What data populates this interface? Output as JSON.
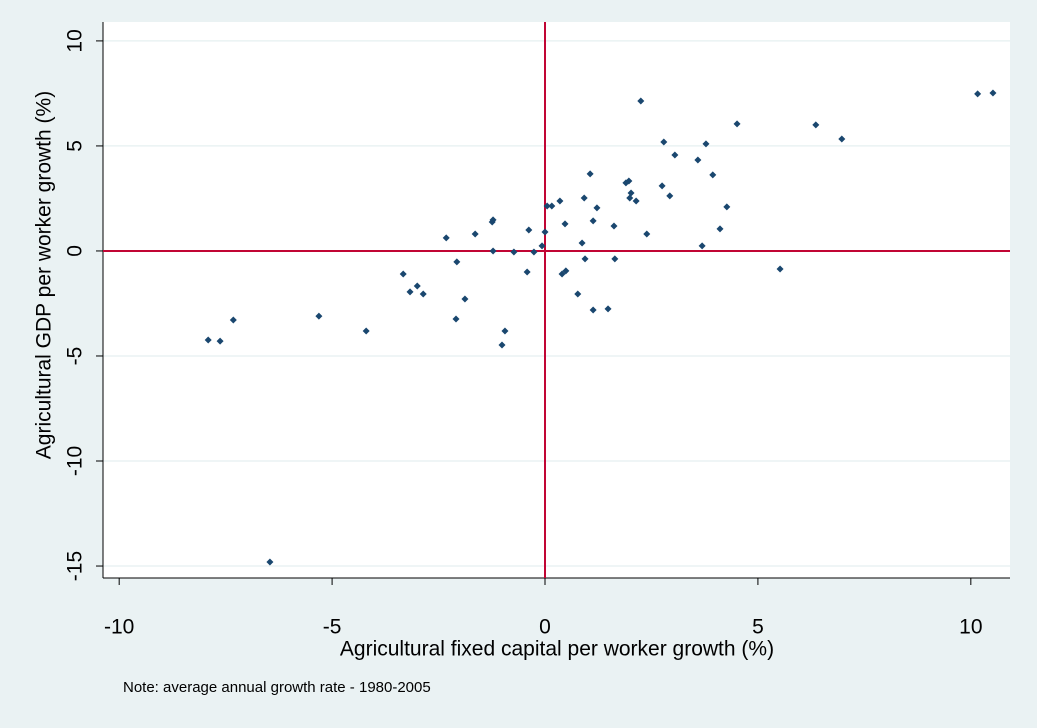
{
  "chart_data": {
    "type": "scatter",
    "xlabel": "Agricultural fixed capital per worker growth (%)",
    "ylabel": "Agricultural GDP per worker growth (%)",
    "note": "Note: average annual growth rate - 1980-2005",
    "color": "#1a476f",
    "refline_color": "#c10534",
    "xline": 0,
    "yline": 0,
    "grid": true,
    "xlim": [
      -10.38,
      10.92
    ],
    "ylim": [
      -15.57,
      10.9
    ],
    "xticks": [
      -10,
      -5,
      0,
      5,
      10
    ],
    "yticks": [
      10,
      5,
      0,
      -5,
      -10,
      -15
    ],
    "x": [
      -7.91,
      -7.63,
      -7.32,
      -6.46,
      -5.31,
      -4.2,
      -3.33,
      -3.17,
      -3.0,
      -2.86,
      -2.32,
      -2.07,
      -2.09,
      -1.88,
      -1.64,
      -1.24,
      -1.22,
      -1.22,
      -1.01,
      -0.94,
      -0.73,
      -0.42,
      -0.38,
      -0.26,
      -0.07,
      0.0,
      0.05,
      0.16,
      0.35,
      0.4,
      0.49,
      0.47,
      0.77,
      0.87,
      0.92,
      0.94,
      1.06,
      1.13,
      1.13,
      1.22,
      1.48,
      1.62,
      1.64,
      1.9,
      1.97,
      1.99,
      2.02,
      2.14,
      2.25,
      2.39,
      2.75,
      2.79,
      2.93,
      3.05,
      3.59,
      3.69,
      3.78,
      3.94,
      4.11,
      4.27,
      4.51,
      5.52,
      6.36,
      6.97,
      10.16,
      10.52
    ],
    "values": [
      -4.24,
      -4.29,
      -3.29,
      -14.81,
      -3.1,
      -3.81,
      -1.1,
      -1.95,
      -1.67,
      -2.05,
      0.62,
      -0.52,
      -3.24,
      -2.29,
      0.81,
      1.38,
      1.48,
      0.0,
      -4.48,
      -3.81,
      -0.05,
      -1.0,
      1.0,
      -0.05,
      0.24,
      0.9,
      2.14,
      2.14,
      2.38,
      -1.1,
      -0.95,
      1.29,
      -2.05,
      0.38,
      2.52,
      -0.38,
      3.67,
      -2.81,
      1.43,
      2.05,
      -2.76,
      1.19,
      -0.38,
      3.24,
      3.33,
      2.52,
      2.76,
      2.38,
      7.14,
      0.81,
      3.1,
      5.19,
      2.62,
      4.57,
      4.33,
      0.24,
      5.1,
      3.62,
      1.05,
      2.1,
      6.05,
      -0.86,
      6.0,
      5.33,
      7.48,
      7.52
    ]
  }
}
